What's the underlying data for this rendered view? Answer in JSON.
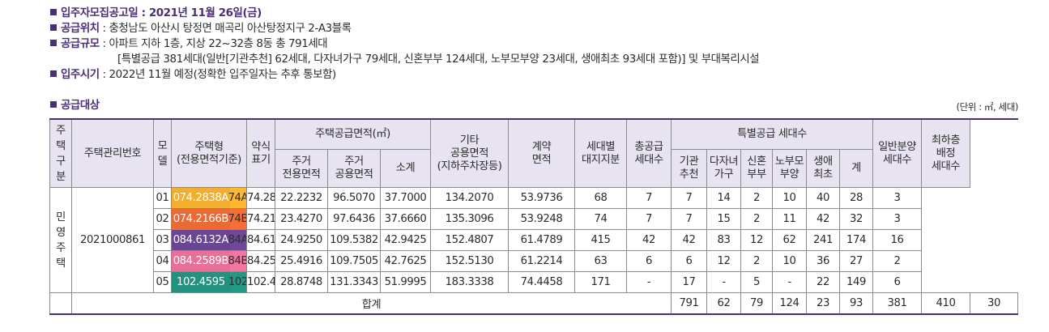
{
  "info": {
    "lines": [
      {
        "label": "입주자모집공고일 : 2021년 11월 26일(금)",
        "text": ""
      },
      {
        "label": "공급위치",
        "text": " : 충청남도 아산시 탕정면 매곡리 아산탕정지구 2-A3블록"
      },
      {
        "label": "공급규모",
        "text": " : 아파트 지하 1층, 지상 22~32층 8동 총 791세대"
      },
      {
        "label": "",
        "text": "[특별공급 381세대(일반[기관추천] 62세대, 다자녀가구 79세대, 신혼부부 124세대, 노부모부양 23세대, 생애최초 93세대 포함)] 및 부대복리시설"
      },
      {
        "label": "입주시기",
        "text": " : 2022년 11월 예정(정확한 입주일자는 추후 통보함)"
      }
    ],
    "section_title": "공급대상",
    "unit_note": "(단위 : ㎡, 세대)"
  },
  "table": {
    "headers": {
      "type": "주택구분",
      "mgmt": "주택관리번호",
      "model": "모델",
      "housing": "주택형\n(전용면적기준)",
      "abbr": "약식\n표기",
      "supply_area": "주택공급면적(㎡)",
      "exclusive": "주거\n전용면적",
      "common": "주거\n공용면적",
      "subtotal": "소계",
      "other": "기타\n공용면적\n(지하주차장등)",
      "contract": "계약\n면적",
      "land": "세대별\n대지지분",
      "total_supply": "총공급\n세대수",
      "special": "특별공급 세대수",
      "institution": "기관\n추천",
      "multichild": "다자녀\n가구",
      "newlywed": "신혼\n부부",
      "parents": "노부모\n부양",
      "firstlife": "생애\n최초",
      "sum": "계",
      "general": "일반분양\n세대수",
      "lowest": "최하층\n배정\n세대수"
    },
    "group_type": "민영주택",
    "mgmt_no": "2021000861",
    "rows": [
      {
        "model": "01",
        "housing": "074.2838A",
        "abbr": "74A",
        "color": "#f2ae2f",
        "exclusive": "74.2838",
        "common": "22.2232",
        "subtotal": "96.5070",
        "other": "37.7000",
        "contract": "134.2070",
        "land": "53.9736",
        "total": "68",
        "institution": "7",
        "multichild": "7",
        "newlywed": "14",
        "parents": "2",
        "firstlife": "10",
        "sum": "40",
        "general": "28",
        "lowest": "3"
      },
      {
        "model": "02",
        "housing": "074.2166B",
        "abbr": "74B",
        "color": "#ea6a36",
        "exclusive": "74.2166",
        "common": "23.4270",
        "subtotal": "97.6436",
        "other": "37.6660",
        "contract": "135.3096",
        "land": "53.9248",
        "total": "74",
        "institution": "7",
        "multichild": "7",
        "newlywed": "15",
        "parents": "2",
        "firstlife": "11",
        "sum": "42",
        "general": "32",
        "lowest": "3"
      },
      {
        "model": "03",
        "housing": "084.6132A",
        "abbr": "84A",
        "color": "#6a4592",
        "exclusive": "84.6132",
        "common": "24.9250",
        "subtotal": "109.5382",
        "other": "42.9425",
        "contract": "152.4807",
        "land": "61.4789",
        "total": "415",
        "institution": "42",
        "multichild": "42",
        "newlywed": "83",
        "parents": "12",
        "firstlife": "62",
        "sum": "241",
        "general": "174",
        "lowest": "16"
      },
      {
        "model": "04",
        "housing": "084.2589B",
        "abbr": "84B",
        "color": "#e86f97",
        "exclusive": "84.2589",
        "common": "25.4916",
        "subtotal": "109.7505",
        "other": "42.7625",
        "contract": "152.5130",
        "land": "61.2214",
        "total": "63",
        "institution": "6",
        "multichild": "6",
        "newlywed": "12",
        "parents": "2",
        "firstlife": "10",
        "sum": "36",
        "general": "27",
        "lowest": "2"
      },
      {
        "model": "05",
        "housing": "102.4595",
        "abbr": "102",
        "color": "#23917e",
        "exclusive": "102.4595",
        "common": "28.8748",
        "subtotal": "131.3343",
        "other": "51.9995",
        "contract": "183.3338",
        "land": "74.4458",
        "total": "171",
        "institution": "-",
        "multichild": "17",
        "newlywed": "-",
        "parents": "5",
        "firstlife": "-",
        "sum": "22",
        "general": "149",
        "lowest": "6"
      }
    ],
    "totals": {
      "label": "합계",
      "total": "791",
      "institution": "62",
      "multichild": "79",
      "newlywed": "124",
      "parents": "23",
      "firstlife": "93",
      "sum": "381",
      "general": "410",
      "lowest": "30"
    }
  }
}
